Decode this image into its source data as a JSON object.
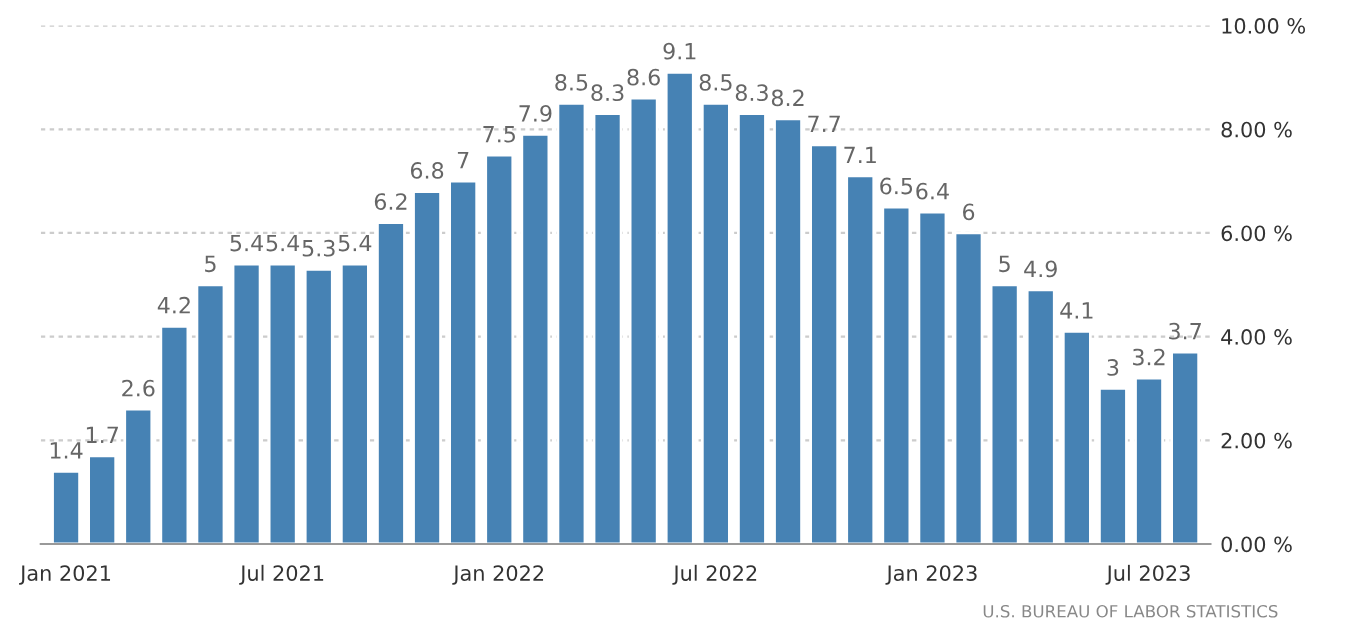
{
  "chart_data": {
    "type": "bar",
    "categories": [
      "Jan 2021",
      null,
      null,
      null,
      null,
      null,
      "Jul 2021",
      null,
      null,
      null,
      null,
      null,
      "Jan 2022",
      null,
      null,
      null,
      null,
      null,
      "Jul 2022",
      null,
      null,
      null,
      null,
      null,
      "Jan 2023",
      null,
      null,
      null,
      null,
      null,
      "Jul 2023",
      null
    ],
    "values": [
      1.4,
      1.7,
      2.6,
      4.2,
      5,
      5.4,
      5.4,
      5.3,
      5.4,
      6.2,
      6.8,
      7,
      7.5,
      7.9,
      8.5,
      8.3,
      8.6,
      9.1,
      8.5,
      8.3,
      8.2,
      7.7,
      7.1,
      6.5,
      6.4,
      6,
      5,
      4.9,
      4.1,
      3,
      3.2,
      3.7
    ],
    "color": "#4682b4",
    "data_labels": true,
    "ylim": [
      0,
      10
    ],
    "yticks": [
      {
        "value": 0,
        "label": "0.00 %"
      },
      {
        "value": 2,
        "label": "2.00 %"
      },
      {
        "value": 4,
        "label": "4.00 %"
      },
      {
        "value": 6,
        "label": "6.00 %"
      },
      {
        "value": 8,
        "label": "8.00 %"
      },
      {
        "value": 10,
        "label": "10.00 %"
      }
    ],
    "grid": "y",
    "annotations": [
      "U.S. BUREAU OF LABOR STATISTICS"
    ]
  }
}
